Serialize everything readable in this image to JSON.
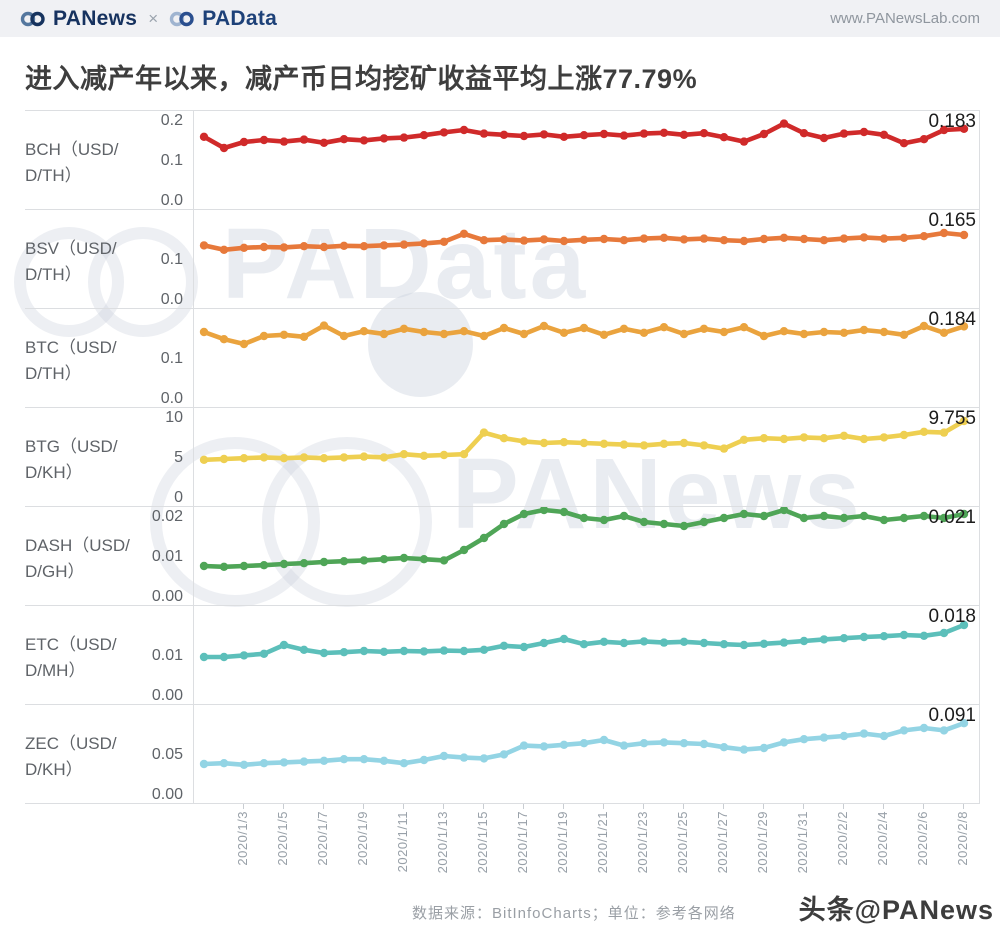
{
  "header": {
    "brand_left": "PANews",
    "brand_separator": "×",
    "brand_right": "PAData",
    "url": "www.PANewsLab.com"
  },
  "title": "进入减产年以来，减产币日均挖矿收益平均上涨77.79%",
  "footer": {
    "source": "数据来源：BitInfoCharts；单位：参考各网络"
  },
  "watermarks": {
    "big_1": "PAData",
    "big_2": "PANews",
    "corner": "头条@PANews"
  },
  "chart_data": {
    "type": "line",
    "x_range": "2020/1/1 – 2020/2/8 (daily points)",
    "grid": true,
    "x_tick_labels": [
      "2020/1/3",
      "2020/1/5",
      "2020/1/7",
      "2020/1/9",
      "2020/1/11",
      "2020/1/13",
      "2020/1/15",
      "2020/1/17",
      "2020/1/19",
      "2020/1/21",
      "2020/1/23",
      "2020/1/25",
      "2020/1/27",
      "2020/1/29",
      "2020/1/31",
      "2020/2/2",
      "2020/2/4",
      "2020/2/6",
      "2020/2/8"
    ],
    "charts": [
      {
        "coin": "BCH",
        "label": "BCH（USD/D/TH）",
        "color": "#d02a2a",
        "end_label": "0.183",
        "ymax": 0.2,
        "yticks": [
          {
            "label": "0.2",
            "value": 0.2
          },
          {
            "label": "0.1",
            "value": 0.1
          },
          {
            "label": "0.0",
            "value": 0.0
          }
        ],
        "values": [
          0.163,
          0.135,
          0.15,
          0.155,
          0.151,
          0.156,
          0.148,
          0.157,
          0.154,
          0.159,
          0.161,
          0.167,
          0.174,
          0.18,
          0.171,
          0.168,
          0.165,
          0.169,
          0.163,
          0.167,
          0.17,
          0.166,
          0.171,
          0.173,
          0.168,
          0.172,
          0.162,
          0.151,
          0.17,
          0.196,
          0.172,
          0.16,
          0.171,
          0.175,
          0.168,
          0.147,
          0.157,
          0.18,
          0.183
        ]
      },
      {
        "coin": "BSV",
        "label": "BSV（USD/D/TH）",
        "color": "#e7793b",
        "end_label": "0.165",
        "ymax": 0.2,
        "yticks": [
          {
            "label": "0.1",
            "value": 0.1
          },
          {
            "label": "0.0",
            "value": 0.0
          }
        ],
        "values": [
          0.139,
          0.128,
          0.133,
          0.135,
          0.134,
          0.137,
          0.135,
          0.138,
          0.137,
          0.139,
          0.141,
          0.144,
          0.148,
          0.168,
          0.152,
          0.154,
          0.151,
          0.154,
          0.15,
          0.153,
          0.155,
          0.152,
          0.156,
          0.158,
          0.154,
          0.156,
          0.152,
          0.15,
          0.155,
          0.158,
          0.155,
          0.152,
          0.156,
          0.159,
          0.156,
          0.158,
          0.162,
          0.17,
          0.165
        ]
      },
      {
        "coin": "BTC",
        "label": "BTC（USD/D/TH）",
        "color": "#eaa33e",
        "end_label": "0.184",
        "ymax": 0.2,
        "yticks": [
          {
            "label": "0.1",
            "value": 0.1
          },
          {
            "label": "0.0",
            "value": 0.0
          }
        ],
        "values": [
          0.17,
          0.152,
          0.14,
          0.16,
          0.163,
          0.158,
          0.186,
          0.16,
          0.172,
          0.165,
          0.178,
          0.17,
          0.165,
          0.172,
          0.16,
          0.18,
          0.165,
          0.185,
          0.168,
          0.18,
          0.163,
          0.178,
          0.168,
          0.182,
          0.165,
          0.178,
          0.17,
          0.182,
          0.16,
          0.172,
          0.165,
          0.17,
          0.168,
          0.175,
          0.17,
          0.163,
          0.185,
          0.168,
          0.184
        ]
      },
      {
        "coin": "BTG",
        "label": "BTG（USD/D/KH）",
        "color": "#eecf51",
        "end_label": "9.755",
        "ymax": 10,
        "yticks": [
          {
            "label": "10",
            "value": 10
          },
          {
            "label": "5",
            "value": 5
          },
          {
            "label": "0",
            "value": 0
          }
        ],
        "values": [
          4.9,
          5.0,
          5.1,
          5.2,
          5.1,
          5.2,
          5.1,
          5.2,
          5.3,
          5.2,
          5.6,
          5.4,
          5.5,
          5.6,
          8.3,
          7.6,
          7.2,
          7.0,
          7.1,
          7.0,
          6.9,
          6.8,
          6.7,
          6.9,
          7.0,
          6.7,
          6.3,
          7.4,
          7.6,
          7.5,
          7.7,
          7.6,
          7.9,
          7.5,
          7.7,
          8.0,
          8.4,
          8.3,
          9.755
        ]
      },
      {
        "coin": "DASH",
        "label": "DASH（USD/D/GH）",
        "color": "#4fa557",
        "end_label": "0.021",
        "ymax": 0.02,
        "yticks": [
          {
            "label": "0.02",
            "value": 0.02
          },
          {
            "label": "0.01",
            "value": 0.01
          },
          {
            "label": "0.00",
            "value": 0.0
          }
        ],
        "values": [
          0.008,
          0.0078,
          0.008,
          0.0082,
          0.0085,
          0.0087,
          0.009,
          0.0092,
          0.0094,
          0.0097,
          0.01,
          0.0097,
          0.0094,
          0.012,
          0.015,
          0.0185,
          0.021,
          0.022,
          0.0215,
          0.02,
          0.0195,
          0.0205,
          0.019,
          0.0185,
          0.018,
          0.019,
          0.02,
          0.021,
          0.0205,
          0.022,
          0.02,
          0.0205,
          0.02,
          0.0205,
          0.0195,
          0.02,
          0.0205,
          0.02,
          0.021
        ]
      },
      {
        "coin": "ETC",
        "label": "ETC（USD/D/MH）",
        "color": "#5cbfba",
        "end_label": "0.018",
        "ymax": 0.02,
        "yticks": [
          {
            "label": "0.01",
            "value": 0.01
          },
          {
            "label": "0.00",
            "value": 0.0
          }
        ],
        "values": [
          0.01,
          0.01,
          0.0104,
          0.0108,
          0.013,
          0.0118,
          0.011,
          0.0112,
          0.0115,
          0.0113,
          0.0115,
          0.0114,
          0.0116,
          0.0115,
          0.0118,
          0.0128,
          0.0125,
          0.0135,
          0.0145,
          0.0132,
          0.0138,
          0.0135,
          0.0139,
          0.0136,
          0.0138,
          0.0135,
          0.0132,
          0.013,
          0.0133,
          0.0136,
          0.014,
          0.0144,
          0.0147,
          0.015,
          0.0152,
          0.0155,
          0.0153,
          0.016,
          0.018
        ]
      },
      {
        "coin": "ZEC",
        "label": "ZEC（USD/D/KH）",
        "color": "#93d4e4",
        "end_label": "0.091",
        "ymax": 0.1,
        "yticks": [
          {
            "label": "0.05",
            "value": 0.05
          },
          {
            "label": "0.00",
            "value": 0.0
          }
        ],
        "values": [
          0.04,
          0.041,
          0.039,
          0.041,
          0.042,
          0.043,
          0.044,
          0.046,
          0.046,
          0.044,
          0.041,
          0.045,
          0.05,
          0.048,
          0.047,
          0.052,
          0.063,
          0.062,
          0.064,
          0.066,
          0.07,
          0.063,
          0.066,
          0.067,
          0.066,
          0.065,
          0.061,
          0.058,
          0.06,
          0.067,
          0.071,
          0.073,
          0.075,
          0.078,
          0.075,
          0.082,
          0.085,
          0.082,
          0.091
        ]
      }
    ]
  }
}
